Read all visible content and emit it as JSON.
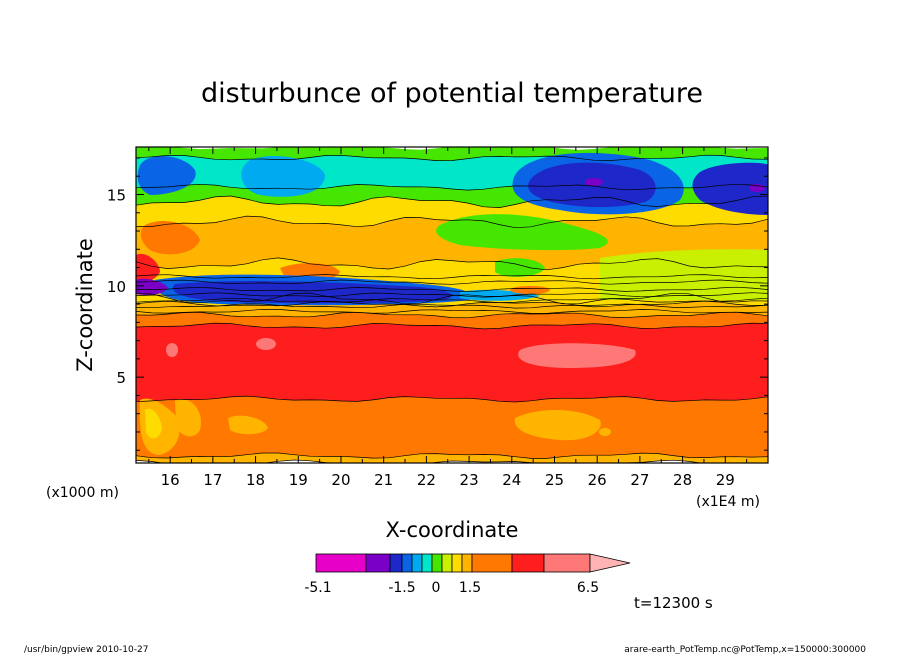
{
  "chart_data": {
    "type": "heatmap",
    "title": "disturbunce of potential temperature",
    "xlabel": "X-coordinate",
    "ylabel": "Z-coordinate",
    "x_unit_note_left": "(x1000 m)",
    "x_unit_note_right": "(x1E4 m)",
    "xlim": [
      15.2,
      30.0
    ],
    "ylim": [
      0.3,
      17.6
    ],
    "x_ticks": [
      "16",
      "17",
      "18",
      "19",
      "20",
      "21",
      "22",
      "23",
      "24",
      "25",
      "26",
      "27",
      "28",
      "29"
    ],
    "x_tick_values": [
      16,
      17,
      18,
      19,
      20,
      21,
      22,
      23,
      24,
      25,
      26,
      27,
      28,
      29
    ],
    "y_ticks": [
      "5",
      "10",
      "15"
    ],
    "y_tick_values": [
      5,
      10,
      15
    ],
    "colorbar": {
      "labels": [
        "-5.1",
        "-1.5",
        "0",
        "1.5",
        "6.5"
      ],
      "label_values": [
        -5.1,
        -1.5,
        0,
        1.5,
        6.5
      ],
      "colors": [
        "#e600c8",
        "#7a00c8",
        "#1e28c8",
        "#0a64e6",
        "#00aaf0",
        "#00e6c8",
        "#46e600",
        "#c8f000",
        "#ffdc00",
        "#ffb400",
        "#ff7800",
        "#ff1e1e",
        "#ff7878",
        "#ffb4b4"
      ]
    },
    "time_label": "t=12300 s",
    "bands": [
      {
        "z": [
          0.3,
          0.7
        ],
        "color": "#ffb400"
      },
      {
        "z": [
          0.7,
          3.8
        ],
        "color": "#ff7800"
      },
      {
        "z": [
          3.8,
          7.8
        ],
        "color": "#ff1e1e"
      },
      {
        "z": [
          7.8,
          8.4
        ],
        "color": "#ff7800"
      },
      {
        "z": [
          8.4,
          9.0
        ],
        "color": "#ffb400"
      },
      {
        "z": [
          9.0,
          9.3
        ],
        "color": "#ffdc00"
      },
      {
        "z": [
          9.3,
          11.2
        ],
        "color": "#ffdc00"
      },
      {
        "z": [
          11.2,
          13.5
        ],
        "color": "#ffb400"
      },
      {
        "z": [
          13.5,
          14.6
        ],
        "color": "#ffdc00"
      },
      {
        "z": [
          14.6,
          15.4
        ],
        "color": "#46e600"
      },
      {
        "z": [
          15.4,
          17.0
        ],
        "color": "#00e6c8"
      },
      {
        "z": [
          17.0,
          17.6
        ],
        "color": "#46e600"
      }
    ]
  },
  "footer": {
    "left": "/usr/bin/gpview   2010-10-27",
    "right": "arare-earth_PotTemp.nc@PotTemp,x=150000:300000"
  }
}
